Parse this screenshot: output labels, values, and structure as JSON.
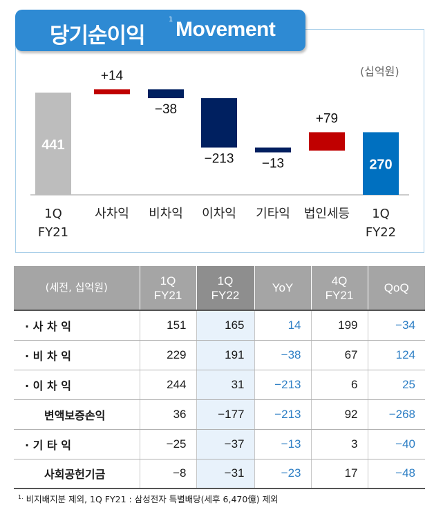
{
  "title": {
    "korean": "당기순이익",
    "sup": "1",
    "english": "Movement"
  },
  "chart_data": {
    "type": "waterfall",
    "unit": "(십억원)",
    "categories": [
      "1Q FY21",
      "사차익",
      "비차익",
      "이차익",
      "기타익",
      "법인세등",
      "1Q FY22"
    ],
    "category_lines": [
      [
        "1Q",
        "FY21"
      ],
      [
        "사차익"
      ],
      [
        "비차익"
      ],
      [
        "이차익"
      ],
      [
        "기타익"
      ],
      [
        "법인세등"
      ],
      [
        "1Q",
        "FY22"
      ]
    ],
    "start": 441,
    "changes": [
      14,
      -38,
      -213,
      -13,
      79
    ],
    "end": 270,
    "value_labels": [
      "441",
      "+14",
      "−38",
      "−213",
      "−13",
      "+79",
      "270"
    ],
    "colors": {
      "start": "#bdbdbd",
      "increase": "#c00000",
      "decrease": "#002060",
      "end": "#0070c0"
    }
  },
  "table": {
    "headers": [
      [
        "(세전, 십억원)"
      ],
      [
        "1Q",
        "FY21"
      ],
      [
        "1Q",
        "FY22"
      ],
      [
        "YoY"
      ],
      [
        "4Q",
        "FY21"
      ],
      [
        "QoQ"
      ]
    ],
    "rows": [
      {
        "label": "· 사 차 익",
        "sub": false,
        "values": [
          "151",
          "165",
          "14",
          "199",
          "−34"
        ]
      },
      {
        "label": "· 비 차 익",
        "sub": false,
        "values": [
          "229",
          "191",
          "−38",
          "67",
          "124"
        ]
      },
      {
        "label": "· 이 차 익",
        "sub": false,
        "values": [
          "244",
          "31",
          "−213",
          "6",
          "25"
        ]
      },
      {
        "label": "변액보증손익",
        "sub": true,
        "values": [
          "36",
          "−177",
          "−213",
          "92",
          "−268"
        ]
      },
      {
        "label": "· 기 타 익",
        "sub": false,
        "values": [
          "−25",
          "−37",
          "−13",
          "3",
          "−40"
        ]
      },
      {
        "label": "사회공헌기금",
        "sub": true,
        "values": [
          "−8",
          "−31",
          "−23",
          "17",
          "−48"
        ]
      }
    ]
  },
  "footnote": {
    "sup": "1.",
    "text": "비지배지분 제외, 1Q FY21 : 삼성전자 특별배당(세후 6,470億) 제외"
  },
  "colors": {
    "title_bg": "#2e8ad3",
    "panel_border": "#a9cfe9",
    "header_bg": "#a5a5a5",
    "highlight_col": "#e8f2fb",
    "blue_text": "#2e7fc5"
  }
}
